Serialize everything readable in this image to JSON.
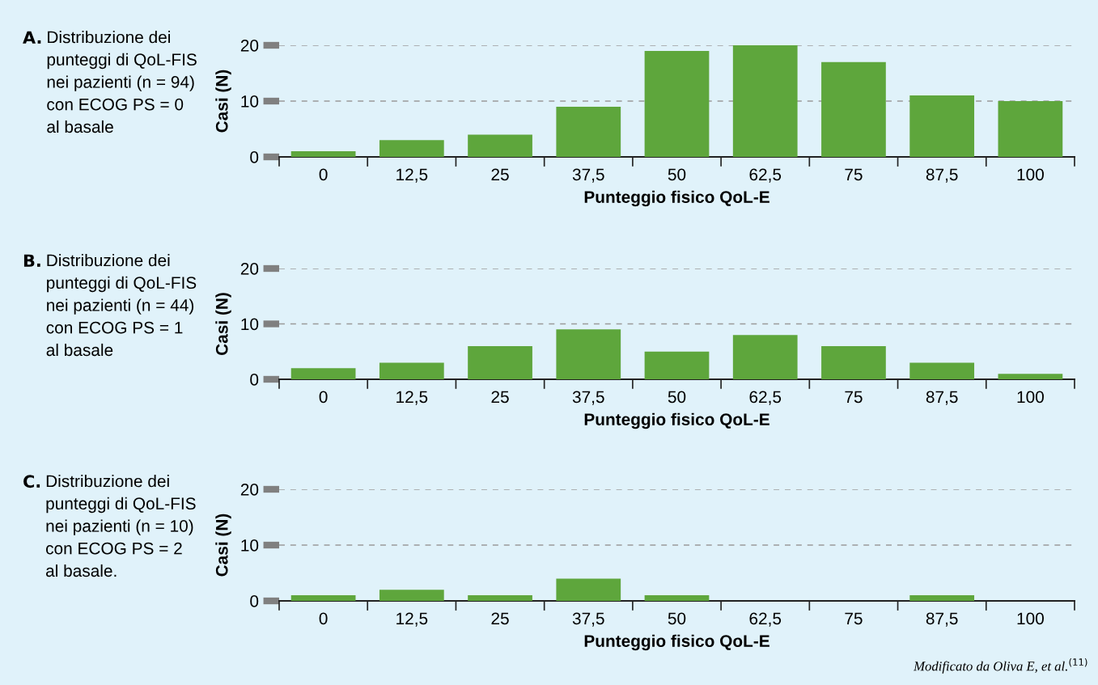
{
  "chart_data": [
    {
      "type": "bar",
      "title": "A. Distribuzione dei\npunteggi di QoL-FIS\nnei pazienti (n = 94)\ncon ECOG PS = 0\nal basale",
      "xlabel": "Punteggio fisico QoL-E",
      "ylabel": "Casi (N)",
      "categories": [
        "0",
        "12,5",
        "25",
        "37,5",
        "50",
        "62,5",
        "75",
        "87,5",
        "100"
      ],
      "values": [
        1,
        3,
        4,
        9,
        19,
        20,
        17,
        11,
        10
      ],
      "color": "#5ea63c",
      "ylim": [
        0,
        20
      ],
      "yticks": [
        0,
        10,
        20
      ],
      "grid": "y"
    },
    {
      "type": "bar",
      "title": "B. Distribuzione dei\npunteggi di QoL-FIS\nnei pazienti (n = 44)\ncon ECOG PS = 1\nal basale",
      "xlabel": "Punteggio fisico QoL-E",
      "ylabel": "Casi (N)",
      "categories": [
        "0",
        "12,5",
        "25",
        "37,5",
        "50",
        "62,5",
        "75",
        "87,5",
        "100"
      ],
      "values": [
        2,
        3,
        6,
        9,
        5,
        8,
        6,
        3,
        1
      ],
      "color": "#5ea63c",
      "ylim": [
        0,
        20
      ],
      "yticks": [
        0,
        10,
        20
      ],
      "grid": "y"
    },
    {
      "type": "bar",
      "title": "C. Distribuzione dei\npunteggi di QoL-FIS\nnei pazienti (n = 10)\ncon ECOG PS = 2\nal basale.",
      "xlabel": "Punteggio fisico QoL-E",
      "ylabel": "Casi (N)",
      "categories": [
        "0",
        "12,5",
        "25",
        "37,5",
        "50",
        "62,5",
        "75",
        "87,5",
        "100"
      ],
      "values": [
        1,
        2,
        1,
        4,
        1,
        0,
        0,
        1,
        0
      ],
      "color": "#5ea63c",
      "ylim": [
        0,
        20
      ],
      "yticks": [
        0,
        10,
        20
      ],
      "grid": "y",
      "annotations": [
        "Modificato da Oliva E, et al.$^{(11)}$"
      ]
    }
  ]
}
